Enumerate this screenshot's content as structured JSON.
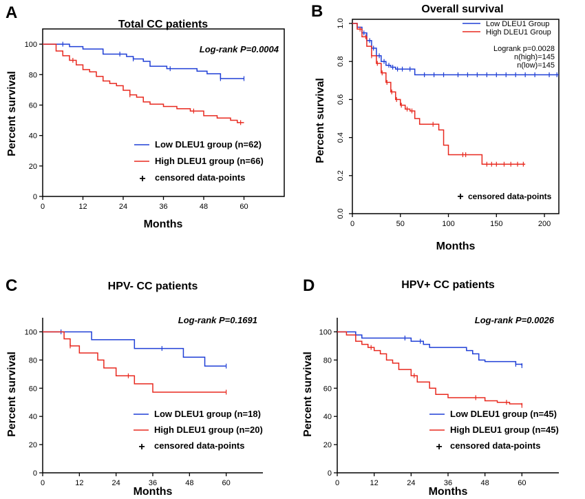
{
  "chart_data": [
    {
      "id": "A",
      "type": "line",
      "panel_label": "A",
      "title": "Total CC patients",
      "xlabel": "Months",
      "ylabel": "Percent survival",
      "xlim": [
        0,
        72
      ],
      "ylim": [
        0,
        110
      ],
      "xticks": [
        0,
        12,
        24,
        36,
        48,
        60
      ],
      "yticks": [
        0,
        20,
        40,
        60,
        80,
        100
      ],
      "annotation": "Log-rank P=0.0004",
      "legend": [
        "Low DLEU1 group (n=62)",
        "High DLEU1 group (n=66)",
        "censored data-points"
      ],
      "legend_position": "bottom-right",
      "series": [
        {
          "name": "Low DLEU1 group (n=62)",
          "color": "#1f3fd6",
          "x": [
            0,
            8,
            12,
            18,
            25,
            27,
            30,
            32,
            37,
            46,
            49,
            53,
            60
          ],
          "y": [
            100,
            98.4,
            96.8,
            93.5,
            91.9,
            90.3,
            88.7,
            85.5,
            83.9,
            82.3,
            80.6,
            77.4,
            77.4
          ],
          "censor_x": [
            6,
            23,
            27,
            38,
            53,
            60
          ]
        },
        {
          "name": "High DLEU1 group (n=66)",
          "color": "#e8281e",
          "x": [
            0,
            4,
            6,
            8,
            10,
            12,
            14,
            16,
            18,
            20,
            22,
            24,
            26,
            28,
            30,
            32,
            36,
            40,
            44,
            48,
            52,
            56,
            58,
            60
          ],
          "y": [
            100,
            95.5,
            92.4,
            89.4,
            86.4,
            83.3,
            81.8,
            78.8,
            75.8,
            74.2,
            72.7,
            69.7,
            66.7,
            65.2,
            62.1,
            60.6,
            59.1,
            57.6,
            56.1,
            53.0,
            51.5,
            50.0,
            48.5,
            48.5
          ],
          "censor_x": [
            9,
            26,
            45,
            59
          ]
        }
      ]
    },
    {
      "id": "B",
      "type": "line",
      "panel_label": "B",
      "title": "Overall survival",
      "xlabel": "Months",
      "ylabel": "Percent survival",
      "xlim": [
        0,
        215
      ],
      "ylim": [
        0,
        1.0
      ],
      "xticks": [
        0,
        50,
        100,
        150,
        200
      ],
      "yticks": [
        0.0,
        0.2,
        0.4,
        0.6,
        0.8,
        1.0
      ],
      "legend": [
        "Low DLEU1 Group",
        "High DLEU1 Group"
      ],
      "legend_position": "top-right",
      "stats": [
        "Logrank p=0.0028",
        "n(high)=145",
        "n(low)=145"
      ],
      "censor_note": "censored data-points",
      "series": [
        {
          "name": "Low DLEU1 Group",
          "color": "#1f3fd6",
          "x": [
            0,
            5,
            10,
            15,
            20,
            25,
            30,
            35,
            40,
            45,
            55,
            65,
            215
          ],
          "y": [
            1.0,
            0.98,
            0.95,
            0.91,
            0.87,
            0.83,
            0.8,
            0.78,
            0.77,
            0.76,
            0.76,
            0.73,
            0.73
          ],
          "censor_x": [
            12,
            18,
            22,
            28,
            33,
            38,
            42,
            47,
            52,
            60,
            75,
            85,
            95,
            110,
            120,
            130,
            140,
            150,
            160,
            170,
            180,
            190,
            205,
            213
          ]
        },
        {
          "name": "High DLEU1 Group",
          "color": "#e8281e",
          "x": [
            0,
            5,
            10,
            15,
            20,
            25,
            30,
            35,
            40,
            45,
            50,
            55,
            60,
            65,
            70,
            80,
            90,
            95,
            100,
            105,
            110,
            115,
            120,
            135,
            140,
            180
          ],
          "y": [
            1.0,
            0.97,
            0.93,
            0.88,
            0.83,
            0.79,
            0.74,
            0.69,
            0.64,
            0.6,
            0.57,
            0.55,
            0.54,
            0.5,
            0.47,
            0.47,
            0.44,
            0.36,
            0.31,
            0.31,
            0.31,
            0.31,
            0.31,
            0.26,
            0.26,
            0.26
          ],
          "censor_x": [
            8,
            14,
            20,
            26,
            31,
            36,
            41,
            46,
            51,
            57,
            62,
            84,
            115,
            118,
            140,
            145,
            150,
            158,
            165,
            172,
            178
          ]
        }
      ]
    },
    {
      "id": "C",
      "type": "line",
      "panel_label": "C",
      "title": "HPV- CC patients",
      "xlabel": "Months",
      "ylabel": "Percent survival",
      "xlim": [
        0,
        72
      ],
      "ylim": [
        0,
        110
      ],
      "xticks": [
        0,
        12,
        24,
        36,
        48,
        60
      ],
      "yticks": [
        0,
        20,
        40,
        60,
        80,
        100
      ],
      "annotation": "Log-rank P=0.1691",
      "legend": [
        "Low DLEU1 group (n=18)",
        "High DLEU1 group (n=20)",
        "censored data-points"
      ],
      "legend_position": "bottom-right",
      "series": [
        {
          "name": "Low DLEU1 group (n=18)",
          "color": "#1f3fd6",
          "x": [
            0,
            16,
            30,
            46,
            53,
            60
          ],
          "y": [
            100,
            94.4,
            88.2,
            82.0,
            75.7,
            75.7
          ],
          "censor_x": [
            6,
            39,
            60
          ]
        },
        {
          "name": "High DLEU1 group (n=20)",
          "color": "#e8281e",
          "x": [
            0,
            7,
            9,
            12,
            18,
            20,
            24,
            30,
            36,
            60
          ],
          "y": [
            100,
            95,
            90,
            85,
            80,
            74.4,
            68.8,
            63.1,
            57.2,
            57.2
          ],
          "censor_x": [
            9,
            28,
            60
          ]
        }
      ]
    },
    {
      "id": "D",
      "type": "line",
      "panel_label": "D",
      "title": "HPV+ CC patients",
      "xlabel": "Months",
      "ylabel": "Percent survival",
      "xlim": [
        0,
        72
      ],
      "ylim": [
        0,
        110
      ],
      "xticks": [
        0,
        12,
        24,
        36,
        48,
        60
      ],
      "yticks": [
        0,
        20,
        40,
        60,
        80,
        100
      ],
      "annotation": "Log-rank P=0.0026",
      "legend": [
        "Low DLEU1 group (n=45)",
        "High DLEU1 group (n=45)",
        "censored data-points"
      ],
      "legend_position": "bottom-right",
      "series": [
        {
          "name": "Low DLEU1 group (n=45)",
          "color": "#1f3fd6",
          "x": [
            0,
            6,
            8,
            24,
            28,
            30,
            34,
            42,
            44,
            46,
            48,
            58,
            60
          ],
          "y": [
            100,
            97.8,
            95.6,
            93.3,
            91.1,
            88.9,
            88.9,
            86.7,
            84.4,
            80.0,
            78.9,
            77.0,
            76.0
          ],
          "censor_x": [
            6,
            22,
            27,
            58,
            60
          ]
        },
        {
          "name": "High DLEU1 group (n=45)",
          "color": "#e8281e",
          "x": [
            0,
            3,
            6,
            8,
            10,
            12,
            14,
            16,
            18,
            20,
            24,
            26,
            30,
            32,
            36,
            40,
            44,
            48,
            52,
            56,
            60
          ],
          "y": [
            100,
            97.8,
            93.3,
            91.1,
            88.9,
            86.7,
            84.4,
            80.0,
            77.8,
            73.3,
            68.9,
            64.4,
            60.0,
            55.6,
            53.3,
            53.3,
            53.3,
            51.1,
            50.0,
            48.9,
            47.8
          ],
          "censor_x": [
            11,
            25,
            45,
            55,
            60
          ]
        }
      ]
    }
  ]
}
